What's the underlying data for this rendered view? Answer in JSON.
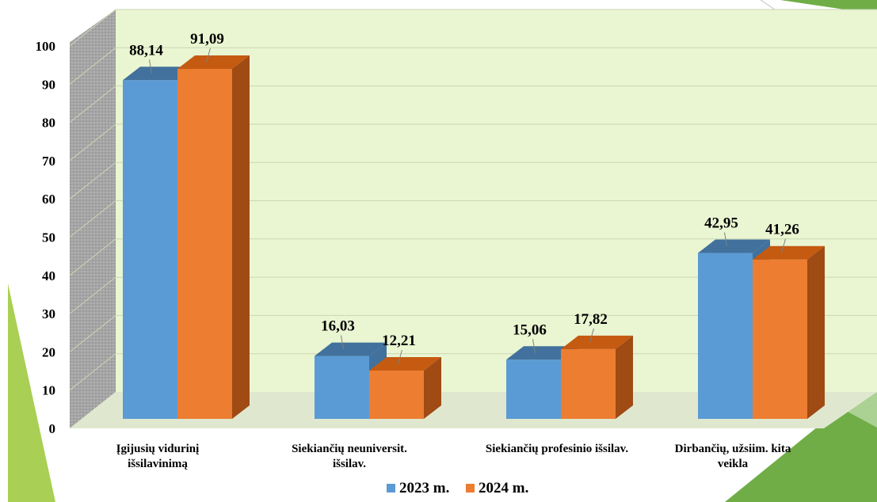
{
  "chart_data": {
    "type": "bar",
    "title": "",
    "xlabel": "",
    "ylabel": "",
    "ylim": [
      0,
      100
    ],
    "yticks": [
      0,
      10,
      20,
      30,
      40,
      50,
      60,
      70,
      80,
      90,
      100
    ],
    "categories": [
      [
        "Įgijusių vidurinį",
        "išsilavinimą"
      ],
      [
        "Siekiančių neuniversit.",
        "išsilav."
      ],
      [
        "Siekiančių profesinio išsilav."
      ],
      [
        "Dirbančių, užsiim. kita",
        "veikla"
      ]
    ],
    "series": [
      {
        "name": "2023 m.",
        "values": [
          88.14,
          16.03,
          15.06,
          42.95
        ],
        "labels": [
          "88,14",
          "16,03",
          "15,06",
          "42,95"
        ],
        "color": "#5b9bd5",
        "top_color": "#41719c",
        "side_color": "#41719c"
      },
      {
        "name": "2024 m.",
        "values": [
          91.09,
          12.21,
          17.82,
          41.26
        ],
        "labels": [
          "91,09",
          "12,21",
          "17,82",
          "41,26"
        ],
        "color": "#ed7d31",
        "top_color": "#c55a11",
        "side_color": "#a04a14"
      }
    ],
    "grid": true,
    "legend_position": "bottom",
    "colors": {
      "back_wall": "#eaf5d2",
      "side_wall": "#a6a6a6",
      "gridline": "#c9d6b4",
      "accent_green_light": "#a9cf54",
      "accent_green_dark": "#70ad47"
    }
  }
}
